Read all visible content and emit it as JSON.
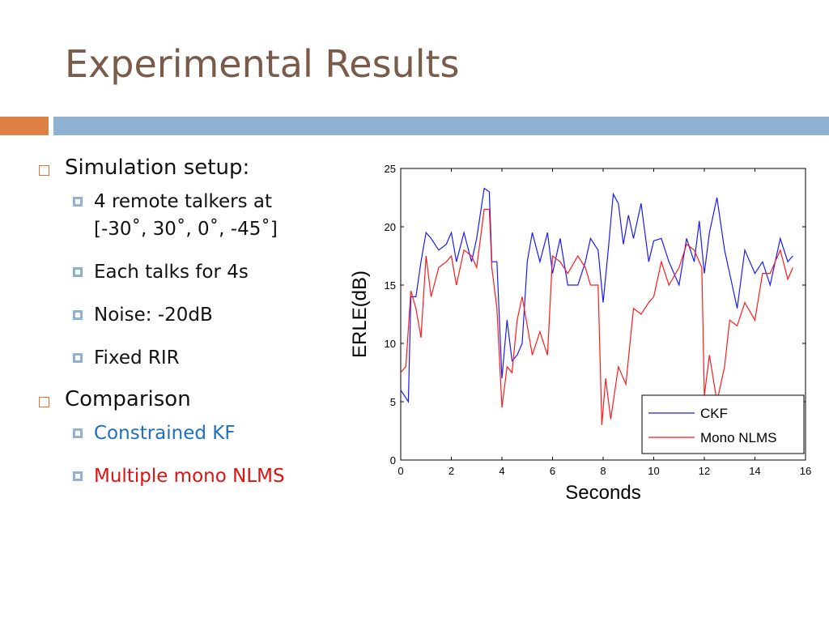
{
  "slide": {
    "title": "Experimental Results"
  },
  "bullets": {
    "setup_heading": "Simulation setup:",
    "setup_items": [
      "4 remote talkers at",
      "[-30˚, 30˚, 0˚, -45˚]",
      "Each talks for 4s",
      "Noise: -20dB",
      "Fixed RIR"
    ],
    "comparison_heading": "Comparison",
    "comparison_items": [
      "Constrained KF",
      "Multiple mono NLMS"
    ]
  },
  "colors": {
    "title": "#7a5a48",
    "accent_orange": "#dd8044",
    "accent_blue": "#8fb2d3",
    "ckf_series": "#1a1aff",
    "nlms_series": "#ff1a1a"
  },
  "chart_data": {
    "type": "line",
    "xlabel": "Seconds",
    "ylabel": "ERLE(dB)",
    "xlim": [
      0,
      16
    ],
    "ylim": [
      0,
      25
    ],
    "xticks": [
      "0",
      "2",
      "4",
      "6",
      "8",
      "10",
      "12",
      "14",
      "16"
    ],
    "yticks": [
      "0",
      "5",
      "10",
      "15",
      "20",
      "25"
    ],
    "grid": false,
    "legend_position": "bottom-right",
    "series": [
      {
        "name": "CKF",
        "x": [
          0,
          0.3,
          0.4,
          0.6,
          0.8,
          1.0,
          1.2,
          1.5,
          1.8,
          2.0,
          2.2,
          2.5,
          2.8,
          3.0,
          3.3,
          3.5,
          3.6,
          3.8,
          4.0,
          4.2,
          4.4,
          4.6,
          4.8,
          5.0,
          5.2,
          5.5,
          5.8,
          6.0,
          6.3,
          6.6,
          7.0,
          7.3,
          7.5,
          7.8,
          8.0,
          8.2,
          8.4,
          8.6,
          8.8,
          9.0,
          9.2,
          9.5,
          9.8,
          10.0,
          10.3,
          10.6,
          11.0,
          11.3,
          11.6,
          11.8,
          12.0,
          12.2,
          12.5,
          12.8,
          13.0,
          13.3,
          13.6,
          14.0,
          14.3,
          14.6,
          15.0,
          15.3,
          15.5
        ],
        "y": [
          6,
          5,
          14,
          14,
          17,
          19.5,
          19,
          18,
          18.5,
          19.5,
          17,
          19.5,
          17,
          19,
          23.3,
          23,
          17,
          17,
          7,
          12,
          8.5,
          9,
          10,
          17,
          19.5,
          17,
          19.5,
          16,
          19,
          15,
          15,
          17,
          19,
          18,
          13.5,
          18,
          22.8,
          22,
          18.5,
          21,
          19,
          22,
          17,
          18.8,
          19,
          17,
          15,
          19,
          17,
          20.5,
          16,
          19.5,
          22.5,
          18,
          16,
          13,
          18,
          16,
          17,
          15,
          19,
          17,
          17.5
        ]
      },
      {
        "name": "Mono NLMS",
        "x": [
          0,
          0.2,
          0.4,
          0.6,
          0.8,
          1.0,
          1.2,
          1.5,
          1.8,
          2.0,
          2.2,
          2.5,
          2.8,
          3.0,
          3.3,
          3.5,
          3.6,
          3.8,
          4.0,
          4.2,
          4.4,
          4.6,
          4.8,
          5.0,
          5.2,
          5.5,
          5.8,
          6.0,
          6.3,
          6.6,
          7.0,
          7.3,
          7.5,
          7.8,
          7.95,
          8.1,
          8.3,
          8.6,
          8.9,
          9.2,
          9.5,
          9.8,
          10.0,
          10.3,
          10.6,
          11.0,
          11.3,
          11.6,
          11.9,
          12.0,
          12.2,
          12.5,
          12.8,
          13.0,
          13.3,
          13.6,
          14.0,
          14.3,
          14.6,
          15.0,
          15.3,
          15.5
        ],
        "y": [
          7.5,
          8,
          14.5,
          13,
          10.5,
          17.5,
          14,
          16.5,
          17,
          17.5,
          15,
          18,
          17.5,
          16.5,
          21.5,
          21.5,
          16.5,
          13,
          4.5,
          8,
          7.5,
          12,
          14,
          11.5,
          9,
          11,
          9,
          17.5,
          17,
          16,
          17.5,
          16.5,
          15,
          15,
          3,
          7,
          3.5,
          8,
          6.5,
          13,
          12.5,
          13.5,
          14,
          17,
          15,
          16.5,
          18.5,
          18,
          16.5,
          5.5,
          9,
          5,
          8,
          12,
          11.5,
          13.5,
          12,
          16,
          16,
          18,
          15.5,
          16.5
        ]
      }
    ]
  }
}
